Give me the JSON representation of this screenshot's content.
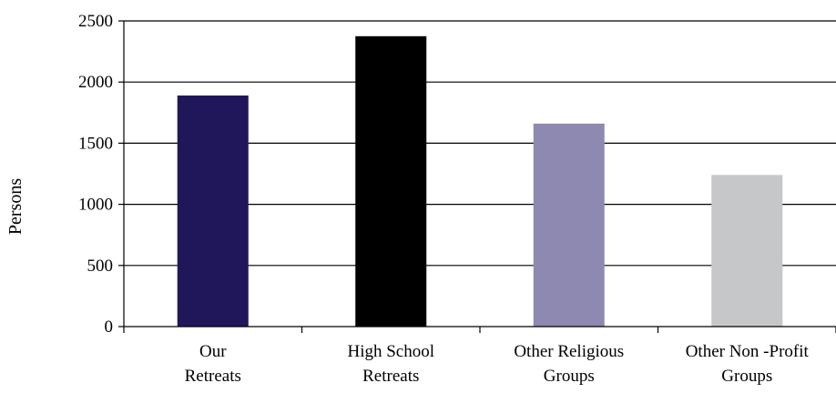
{
  "chart_data": {
    "type": "bar",
    "title": "",
    "xlabel": "",
    "ylabel": "Persons",
    "ylim": [
      0,
      2500
    ],
    "yticks": [
      0,
      500,
      1000,
      1500,
      2000,
      2500
    ],
    "categories": [
      [
        "Our",
        "Retreats"
      ],
      [
        "High School",
        "Retreats"
      ],
      [
        "Other Religious",
        "Groups"
      ],
      [
        "Other Non -Profit",
        "Groups"
      ]
    ],
    "values": [
      1890,
      2375,
      1660,
      1240
    ],
    "bar_colors": [
      "#20175a",
      "#000000",
      "#8e89b0",
      "#c6c7c9"
    ],
    "grid": true,
    "legend": "none"
  }
}
